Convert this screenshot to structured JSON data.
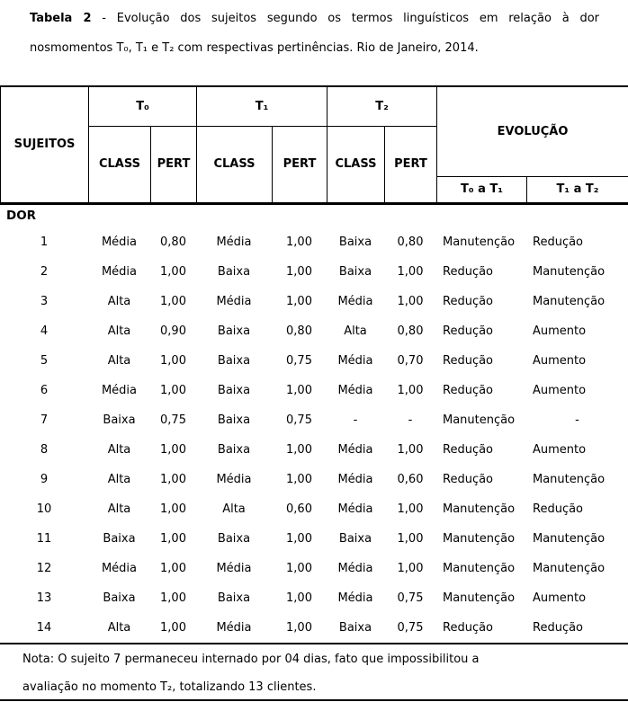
{
  "title": {
    "label": "Tabela 2",
    "separator": "-",
    "line1_rest": "Evolução dos sujeitos segundo os termos linguísticos em relação à dor",
    "line2": "nosmomentos T₀, T₁ e T₂ com respectivas pertinências. Rio de Janeiro, 2014."
  },
  "table": {
    "header": {
      "sujeitos": "SUJEITOS",
      "t0": "T₀",
      "t1": "T₁",
      "t2": "T₂",
      "class_label": "CLASS",
      "pert_label": "PERT",
      "evolucao": "EVOLUÇÃO",
      "evo_t0_t1": "T₀ a T₁",
      "evo_t1_t2": "T₁ a T₂"
    },
    "section_label": "DOR",
    "columns": [
      "sujeito",
      "t0-class",
      "t0-pert",
      "t1-class",
      "t1-pert",
      "t2-class",
      "t2-pert",
      "evolucao-t0-t1",
      "evolucao-t1-t2"
    ],
    "rows": [
      [
        "1",
        "Média",
        "0,80",
        "Média",
        "1,00",
        "Baixa",
        "0,80",
        "Manutenção",
        "Redução"
      ],
      [
        "2",
        "Média",
        "1,00",
        "Baixa",
        "1,00",
        "Baixa",
        "1,00",
        "Redução",
        "Manutenção"
      ],
      [
        "3",
        "Alta",
        "1,00",
        "Média",
        "1,00",
        "Média",
        "1,00",
        "Redução",
        "Manutenção"
      ],
      [
        "4",
        "Alta",
        "0,90",
        "Baixa",
        "0,80",
        "Alta",
        "0,80",
        "Redução",
        "Aumento"
      ],
      [
        "5",
        "Alta",
        "1,00",
        "Baixa",
        "0,75",
        "Média",
        "0,70",
        "Redução",
        "Aumento"
      ],
      [
        "6",
        "Média",
        "1,00",
        "Baixa",
        "1,00",
        "Média",
        "1,00",
        "Redução",
        "Aumento"
      ],
      [
        "7",
        "Baixa",
        "0,75",
        "Baixa",
        "0,75",
        "-",
        "-",
        "Manutenção",
        "-"
      ],
      [
        "8",
        "Alta",
        "1,00",
        "Baixa",
        "1,00",
        "Média",
        "1,00",
        "Redução",
        "Aumento"
      ],
      [
        "9",
        "Alta",
        "1,00",
        "Média",
        "1,00",
        "Média",
        "0,60",
        "Redução",
        "Manutenção"
      ],
      [
        "10",
        "Alta",
        "1,00",
        "Alta",
        "0,60",
        "Média",
        "1,00",
        "Manutenção",
        "Redução"
      ],
      [
        "11",
        "Baixa",
        "1,00",
        "Baixa",
        "1,00",
        "Baixa",
        "1,00",
        "Manutenção",
        "Manutenção"
      ],
      [
        "12",
        "Média",
        "1,00",
        "Média",
        "1,00",
        "Média",
        "1,00",
        "Manutenção",
        "Manutenção"
      ],
      [
        "13",
        "Baixa",
        "1,00",
        "Baixa",
        "1,00",
        "Média",
        "0,75",
        "Manutenção",
        "Aumento"
      ],
      [
        "14",
        "Alta",
        "1,00",
        "Média",
        "1,00",
        "Baixa",
        "0,75",
        "Redução",
        "Redução"
      ]
    ]
  },
  "note": {
    "line1": "Nota: O sujeito 7 permaneceu internado por 04 dias, fato que impossibilitou a",
    "line2": "avaliação no momento T₂, totalizando 13 clientes."
  },
  "colors": {
    "text": "#000000",
    "border": "#000000",
    "background": "#ffffff"
  }
}
